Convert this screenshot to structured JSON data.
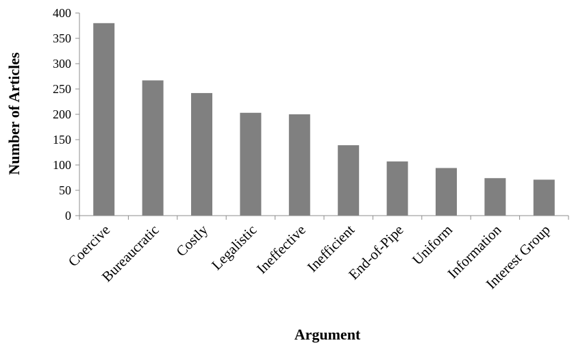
{
  "chart_data": {
    "type": "bar",
    "title": "",
    "xlabel": "Argument",
    "ylabel": "Number of Articles",
    "ylim": [
      0,
      400
    ],
    "yticks": [
      0,
      50,
      100,
      150,
      200,
      250,
      300,
      350,
      400
    ],
    "grid": false,
    "legend": "none",
    "categories": [
      "Coercive",
      "Bureaucratic",
      "Costly",
      "Legalistic",
      "Ineffective",
      "Inefficient",
      "End-of-Pipe",
      "Uniform",
      "Information",
      "Interest Group"
    ],
    "values": [
      380,
      267,
      242,
      203,
      200,
      139,
      107,
      94,
      74,
      71
    ],
    "colors": {
      "bar": "#808080",
      "axis": "#8c8c8c"
    }
  }
}
